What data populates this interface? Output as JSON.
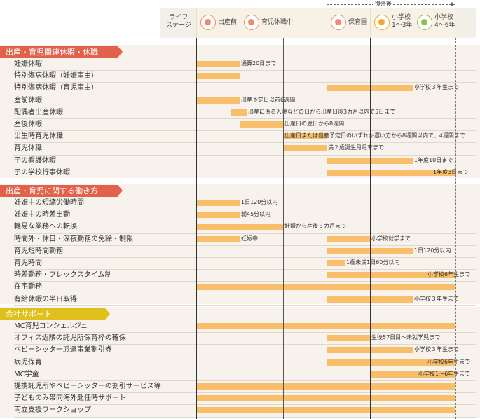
{
  "header": {
    "stage_label": "ライフ\nステージ",
    "return_label": "復帰後",
    "stages": [
      {
        "id": "s1",
        "label": "出産前",
        "icon": "pregnancy-icon",
        "color": "#ef8a6a"
      },
      {
        "id": "s2",
        "label": "育児休職中",
        "icon": "childcare-icon",
        "color": "#ef8a6a"
      },
      {
        "id": "s3",
        "label": "保育園",
        "icon": "nursery-hat-icon",
        "color": "#f08a78"
      },
      {
        "id": "s4",
        "label": "小学校\n1～3年",
        "icon": "school-bag-icon",
        "color": "#f0a830"
      },
      {
        "id": "s5",
        "label": "小学校\n4～6年",
        "icon": "book-icon",
        "color": "#8fc04a"
      }
    ]
  },
  "sections": [
    {
      "title": "出産・育児関連休暇・休職",
      "color": "#e2614a",
      "rows": [
        {
          "label": "妊娠休暇",
          "note": "通算20日まで"
        },
        {
          "label": "特別傷病休暇（妊娠事由）",
          "note": ""
        },
        {
          "label": "特別傷病休暇（育児事由）",
          "note": "小学校３年生まで"
        },
        {
          "label": "産前休暇",
          "note": "出産予定日以前6週間"
        },
        {
          "label": "配偶者出産休暇",
          "note": "出産に係る入院などの日から出産日後3カ月以内で5日まで"
        },
        {
          "label": "産後休暇",
          "note": "出産日の翌日から8週間"
        },
        {
          "label": "出生時育児休職",
          "note": "出産日または出産予定日のいずれか遅い方から8週間以内で、4週間まで"
        },
        {
          "label": "育児休職",
          "note": "満２歳誕生月月末まで"
        },
        {
          "label": "子の看護休暇",
          "note": "1年度10日まで"
        },
        {
          "label": "子の学校行事休暇",
          "note": "1年度3日まで"
        }
      ]
    },
    {
      "title": "出産・育児に関する働き方",
      "color": "#e2614a",
      "rows": [
        {
          "label": "妊娠中の短縮労働時間",
          "note": "1日120分以内"
        },
        {
          "label": "妊娠中の時差出勤",
          "note": "朝45分以内"
        },
        {
          "label": "軽易な業務への転換",
          "note": "妊娠から産後６カ月まで"
        },
        {
          "label": "時間外・休日・深夜勤務の免除・制限",
          "note": "妊娠中",
          "note2": "小学校就学まで"
        },
        {
          "label": "育児短時間勤務",
          "note": "1日120分以内"
        },
        {
          "label": "育児時間",
          "note": "1歳未満1日60分以内"
        },
        {
          "label": "時差勤務・フレックスタイム制",
          "note": "小学校6年生まで"
        },
        {
          "label": "在宅勤務",
          "note": ""
        },
        {
          "label": "有給休暇の半日取得",
          "note": "小学校３年生まで"
        }
      ]
    },
    {
      "title": "会社サポート",
      "color": "#e0c01c",
      "rows": [
        {
          "label": "MC育児コンシェルジュ",
          "note": ""
        },
        {
          "label": "オフィス近隣の託児所保育枠の確保",
          "note": "生後57日目～未就学児まで"
        },
        {
          "label": "ベビーシッター派遣事業割引券",
          "note": "小学校３年生まで"
        },
        {
          "label": "病児保育",
          "note": "小学校6年生まで"
        },
        {
          "label": "MC学童",
          "note": "小学校1～6年生まで"
        },
        {
          "label": "提携託児所やベビーシッターの割引サービス等",
          "note": ""
        },
        {
          "label": "子どものみ帯同海外赴任時サポート",
          "note": ""
        },
        {
          "label": "両立支援ワークショップ",
          "note": ""
        }
      ]
    }
  ],
  "colors": {
    "bar": "#f8be6a",
    "section_bg": "#f7f3ec",
    "header_bg": "#f2efe9"
  }
}
